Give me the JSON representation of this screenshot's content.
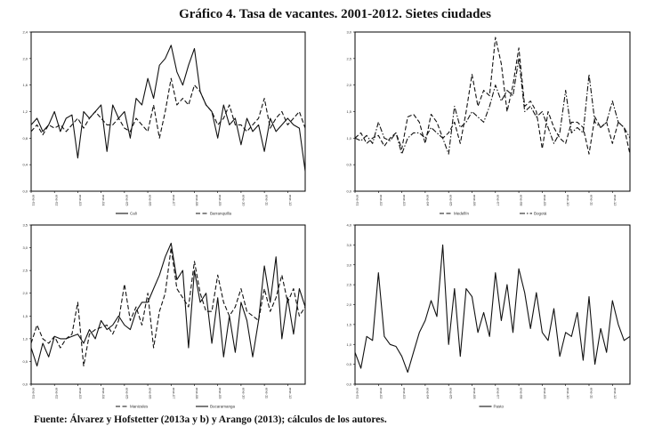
{
  "title": "Gráfico 4. Tasa de vacantes. 2001-2012. Sietes ciudades",
  "source": "Fuente: Álvarez y Hofstetter (2013a y b) y Arango (2013); cálculos de los autores.",
  "chart_data": [
    {
      "type": "line",
      "x_ticks": [
        "ene-01",
        "ene-02",
        "ene-03",
        "ene-04",
        "ene-05",
        "ene-06",
        "ene-07",
        "ene-08",
        "ene-09",
        "ene-10",
        "ene-11",
        "ene-12"
      ],
      "x_frequency": "quarterly (approx.)",
      "y_ticks": [
        "0,0",
        "0,4",
        "0,8",
        "1,2",
        "1,6",
        "2,0",
        "2,4"
      ],
      "ylim": [
        0,
        2.4
      ],
      "legend": "bottom",
      "series": [
        {
          "name": "Cali",
          "style": "solid",
          "values": [
            1.0,
            1.1,
            0.9,
            1.0,
            1.2,
            0.9,
            1.1,
            1.15,
            0.5,
            1.2,
            1.1,
            1.2,
            1.3,
            0.6,
            1.3,
            1.1,
            1.2,
            0.8,
            1.4,
            1.3,
            1.7,
            1.4,
            1.9,
            2.0,
            2.2,
            1.8,
            1.6,
            1.9,
            2.15,
            1.5,
            1.3,
            1.2,
            0.8,
            1.3,
            1.0,
            1.1,
            0.7,
            1.1,
            0.9,
            1.0,
            0.6,
            1.1,
            0.9,
            1.0,
            1.1,
            1.0,
            0.95,
            0.3
          ]
        },
        {
          "name": "Barranquilla",
          "style": "dashed",
          "values": [
            0.9,
            1.0,
            0.85,
            1.0,
            0.95,
            1.0,
            0.9,
            1.0,
            1.1,
            0.95,
            1.1,
            1.2,
            1.1,
            1.0,
            1.0,
            1.1,
            0.95,
            0.9,
            1.1,
            1.0,
            0.9,
            1.3,
            0.8,
            1.2,
            1.7,
            1.3,
            1.4,
            1.3,
            1.6,
            1.5,
            1.3,
            1.2,
            1.0,
            1.1,
            1.3,
            1.0,
            1.0,
            0.9,
            1.0,
            1.1,
            1.4,
            0.95,
            1.1,
            1.2,
            1.0,
            1.1,
            1.2,
            0.95
          ]
        }
      ]
    },
    {
      "type": "line",
      "x_ticks": [
        "ene-01",
        "ene-02",
        "ene-03",
        "ene-04",
        "ene-05",
        "ene-06",
        "ene-07",
        "ene-08",
        "ene-09",
        "ene-10",
        "ene-11",
        "ene-12"
      ],
      "x_frequency": "quarterly (approx.)",
      "y_ticks": [
        "0,0",
        "0,5",
        "1,0",
        "1,5",
        "2,0",
        "2,5",
        "3,0"
      ],
      "ylim": [
        0,
        3.0
      ],
      "legend": "bottom",
      "series": [
        {
          "name": "Medellín",
          "style": "dashed",
          "values": [
            1.0,
            1.1,
            0.9,
            1.0,
            1.05,
            0.85,
            1.0,
            1.1,
            0.8,
            1.4,
            1.45,
            1.3,
            0.9,
            1.45,
            1.3,
            1.0,
            1.1,
            1.3,
            0.9,
            1.5,
            2.2,
            1.6,
            1.9,
            1.8,
            2.9,
            2.4,
            1.5,
            2.0,
            2.7,
            1.6,
            1.7,
            1.5,
            0.8,
            1.5,
            1.2,
            1.0,
            0.9,
            1.3,
            1.3,
            1.2,
            0.7,
            1.4,
            1.2,
            1.3,
            0.9,
            1.3,
            1.2,
            0.7
          ]
        },
        {
          "name": "Bogotá",
          "style": "dashdot",
          "values": [
            1.0,
            0.95,
            1.05,
            0.9,
            1.3,
            1.0,
            0.95,
            1.1,
            0.7,
            1.0,
            1.1,
            1.1,
            1.0,
            1.2,
            1.1,
            1.0,
            0.7,
            1.6,
            1.2,
            1.3,
            1.5,
            1.4,
            1.3,
            1.6,
            2.0,
            1.7,
            1.9,
            1.8,
            2.5,
            1.5,
            1.6,
            1.4,
            1.5,
            1.2,
            0.9,
            1.1,
            1.9,
            1.1,
            1.2,
            1.1,
            2.2,
            1.3,
            1.2,
            1.3,
            1.7,
            1.3,
            1.2,
            1.0
          ]
        }
      ]
    },
    {
      "type": "line",
      "x_ticks": [
        "ene-01",
        "ene-02",
        "ene-03",
        "ene-04",
        "ene-05",
        "ene-06",
        "ene-07",
        "ene-08",
        "ene-09",
        "ene-10",
        "ene-11",
        "ene-12"
      ],
      "x_frequency": "quarterly (approx.)",
      "y_ticks": [
        "0,0",
        "0,5",
        "1,0",
        "1,5",
        "2,0",
        "2,5",
        "3,0",
        "3,5"
      ],
      "ylim": [
        0,
        3.5
      ],
      "legend": "bottom",
      "series": [
        {
          "name": "Manizales",
          "style": "dashed",
          "values": [
            0.9,
            1.3,
            1.0,
            0.9,
            1.05,
            0.8,
            1.0,
            1.1,
            1.8,
            0.4,
            1.1,
            1.2,
            1.25,
            1.3,
            1.1,
            1.4,
            2.2,
            1.4,
            1.7,
            1.3,
            2.0,
            0.8,
            1.6,
            2.0,
            3.0,
            2.1,
            1.9,
            1.7,
            2.7,
            2.0,
            1.6,
            1.6,
            2.4,
            1.8,
            1.5,
            1.7,
            2.1,
            1.6,
            1.5,
            1.4,
            2.1,
            1.6,
            1.9,
            2.4,
            1.8,
            2.1,
            1.5,
            1.7
          ]
        },
        {
          "name": "Bucaramanga",
          "style": "solid",
          "values": [
            0.8,
            0.4,
            0.9,
            0.6,
            1.05,
            1.0,
            1.0,
            1.05,
            1.1,
            0.9,
            1.2,
            1.0,
            1.4,
            1.2,
            1.3,
            1.5,
            1.3,
            1.2,
            1.6,
            1.8,
            1.8,
            2.1,
            2.4,
            2.8,
            3.1,
            2.3,
            2.5,
            0.8,
            2.5,
            1.8,
            2.0,
            0.9,
            1.9,
            0.6,
            1.5,
            0.7,
            1.8,
            1.4,
            0.6,
            1.4,
            2.6,
            1.8,
            2.8,
            1.0,
            1.9,
            1.1,
            2.1,
            1.7
          ]
        }
      ]
    },
    {
      "type": "line",
      "x_ticks": [
        "ene-01",
        "ene-02",
        "ene-03",
        "ene-04",
        "ene-05",
        "ene-06",
        "ene-07",
        "ene-08",
        "ene-09",
        "ene-10",
        "ene-11",
        "ene-12"
      ],
      "x_frequency": "quarterly (approx.)",
      "y_ticks": [
        "0,0",
        "0,5",
        "1,0",
        "1,5",
        "2,0",
        "2,5",
        "3,0",
        "3,5",
        "4,0"
      ],
      "ylim": [
        0,
        4.0
      ],
      "legend": "bottom",
      "series": [
        {
          "name": "Pasto",
          "style": "solid",
          "values": [
            0.8,
            0.4,
            1.2,
            1.1,
            2.8,
            1.2,
            1.0,
            0.95,
            0.7,
            0.3,
            0.8,
            1.3,
            1.6,
            2.1,
            1.7,
            3.5,
            1.0,
            2.4,
            0.7,
            2.4,
            2.2,
            1.3,
            1.8,
            1.2,
            2.8,
            1.6,
            2.5,
            1.3,
            2.9,
            2.3,
            1.4,
            2.3,
            1.3,
            1.1,
            1.9,
            0.7,
            1.3,
            1.2,
            1.8,
            0.6,
            2.2,
            0.5,
            1.4,
            0.8,
            2.1,
            1.5,
            1.1,
            1.2
          ]
        }
      ]
    }
  ]
}
